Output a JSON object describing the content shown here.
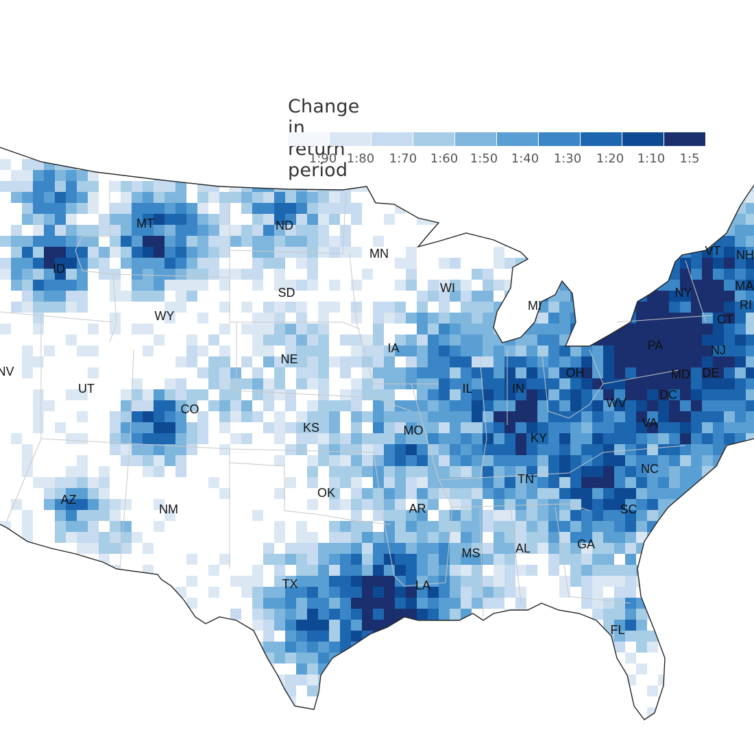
{
  "legend": {
    "title": "Change in return period",
    "colors": [
      "#f4f8fc",
      "#dbe8f4",
      "#c6dbef",
      "#a8cde6",
      "#7fb6de",
      "#5a9fd3",
      "#3a86c6",
      "#1d67b0",
      "#0d4a93",
      "#1b2f6e"
    ],
    "ticks": [
      "1:90",
      "1:80",
      "1:70",
      "1:60",
      "1:50",
      "1:40",
      "1:30",
      "1:20",
      "1:10",
      "1:5"
    ]
  },
  "map": {
    "outline_color": "#222222",
    "state_border_color": "#c8c8c8",
    "states": [
      "MT",
      "ND",
      "MN",
      "ID",
      "SD",
      "WI",
      "WY",
      "MI",
      "VT",
      "NH",
      "NY",
      "MA",
      "RI",
      "CT",
      "IA",
      "PA",
      "NJ",
      "NE",
      "NV",
      "UT",
      "OH",
      "IL",
      "IN",
      "MD",
      "DE",
      "DC",
      "CO",
      "WV",
      "KS",
      "MO",
      "VA",
      "KY",
      "NC",
      "TN",
      "OK",
      "AZ",
      "NM",
      "AR",
      "SC",
      "MS",
      "AL",
      "GA",
      "TX",
      "LA",
      "FL"
    ]
  }
}
